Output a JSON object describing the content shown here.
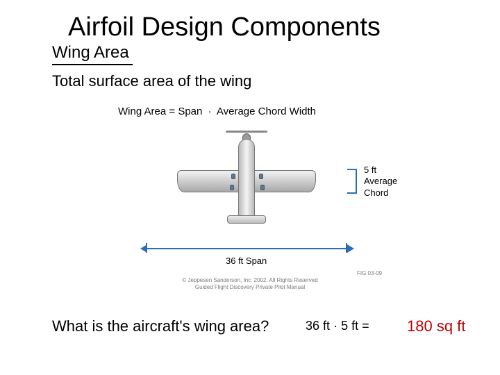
{
  "title": "Airfoil Design Components",
  "subtitle": "Wing Area",
  "description": "Total surface area of the wing",
  "formula": {
    "lhs": "Wing Area",
    "eq": "=",
    "term1": "Span",
    "dot": "·",
    "term2": "Average Chord Width"
  },
  "diagram": {
    "span_label": "36 ft Span",
    "chord_label_l1": "5 ft",
    "chord_label_l2": "Average",
    "chord_label_l3": "Chord",
    "fig_id": "FIG 03-09",
    "copyright_l1": "© Jeppesen Sanderson, Inc. 2002. All Rights Reserved",
    "copyright_l2": "Guided Flight Discovery Private Pilot Manual",
    "span_value_ft": 36,
    "chord_value_ft": 5,
    "bracket_color": "#2b6fb3"
  },
  "question": "What is the aircraft's wing area?",
  "calc": {
    "a": "36 ft",
    "dot": "·",
    "b": "5 ft",
    "eq": "="
  },
  "answer": "180 sq ft",
  "colors": {
    "answer": "#c00000",
    "text": "#000000",
    "background": "#ffffff"
  },
  "fonts": {
    "title_size_pt": 28,
    "subtitle_size_pt": 18,
    "body_size_pt": 16,
    "label_size_pt": 10
  }
}
